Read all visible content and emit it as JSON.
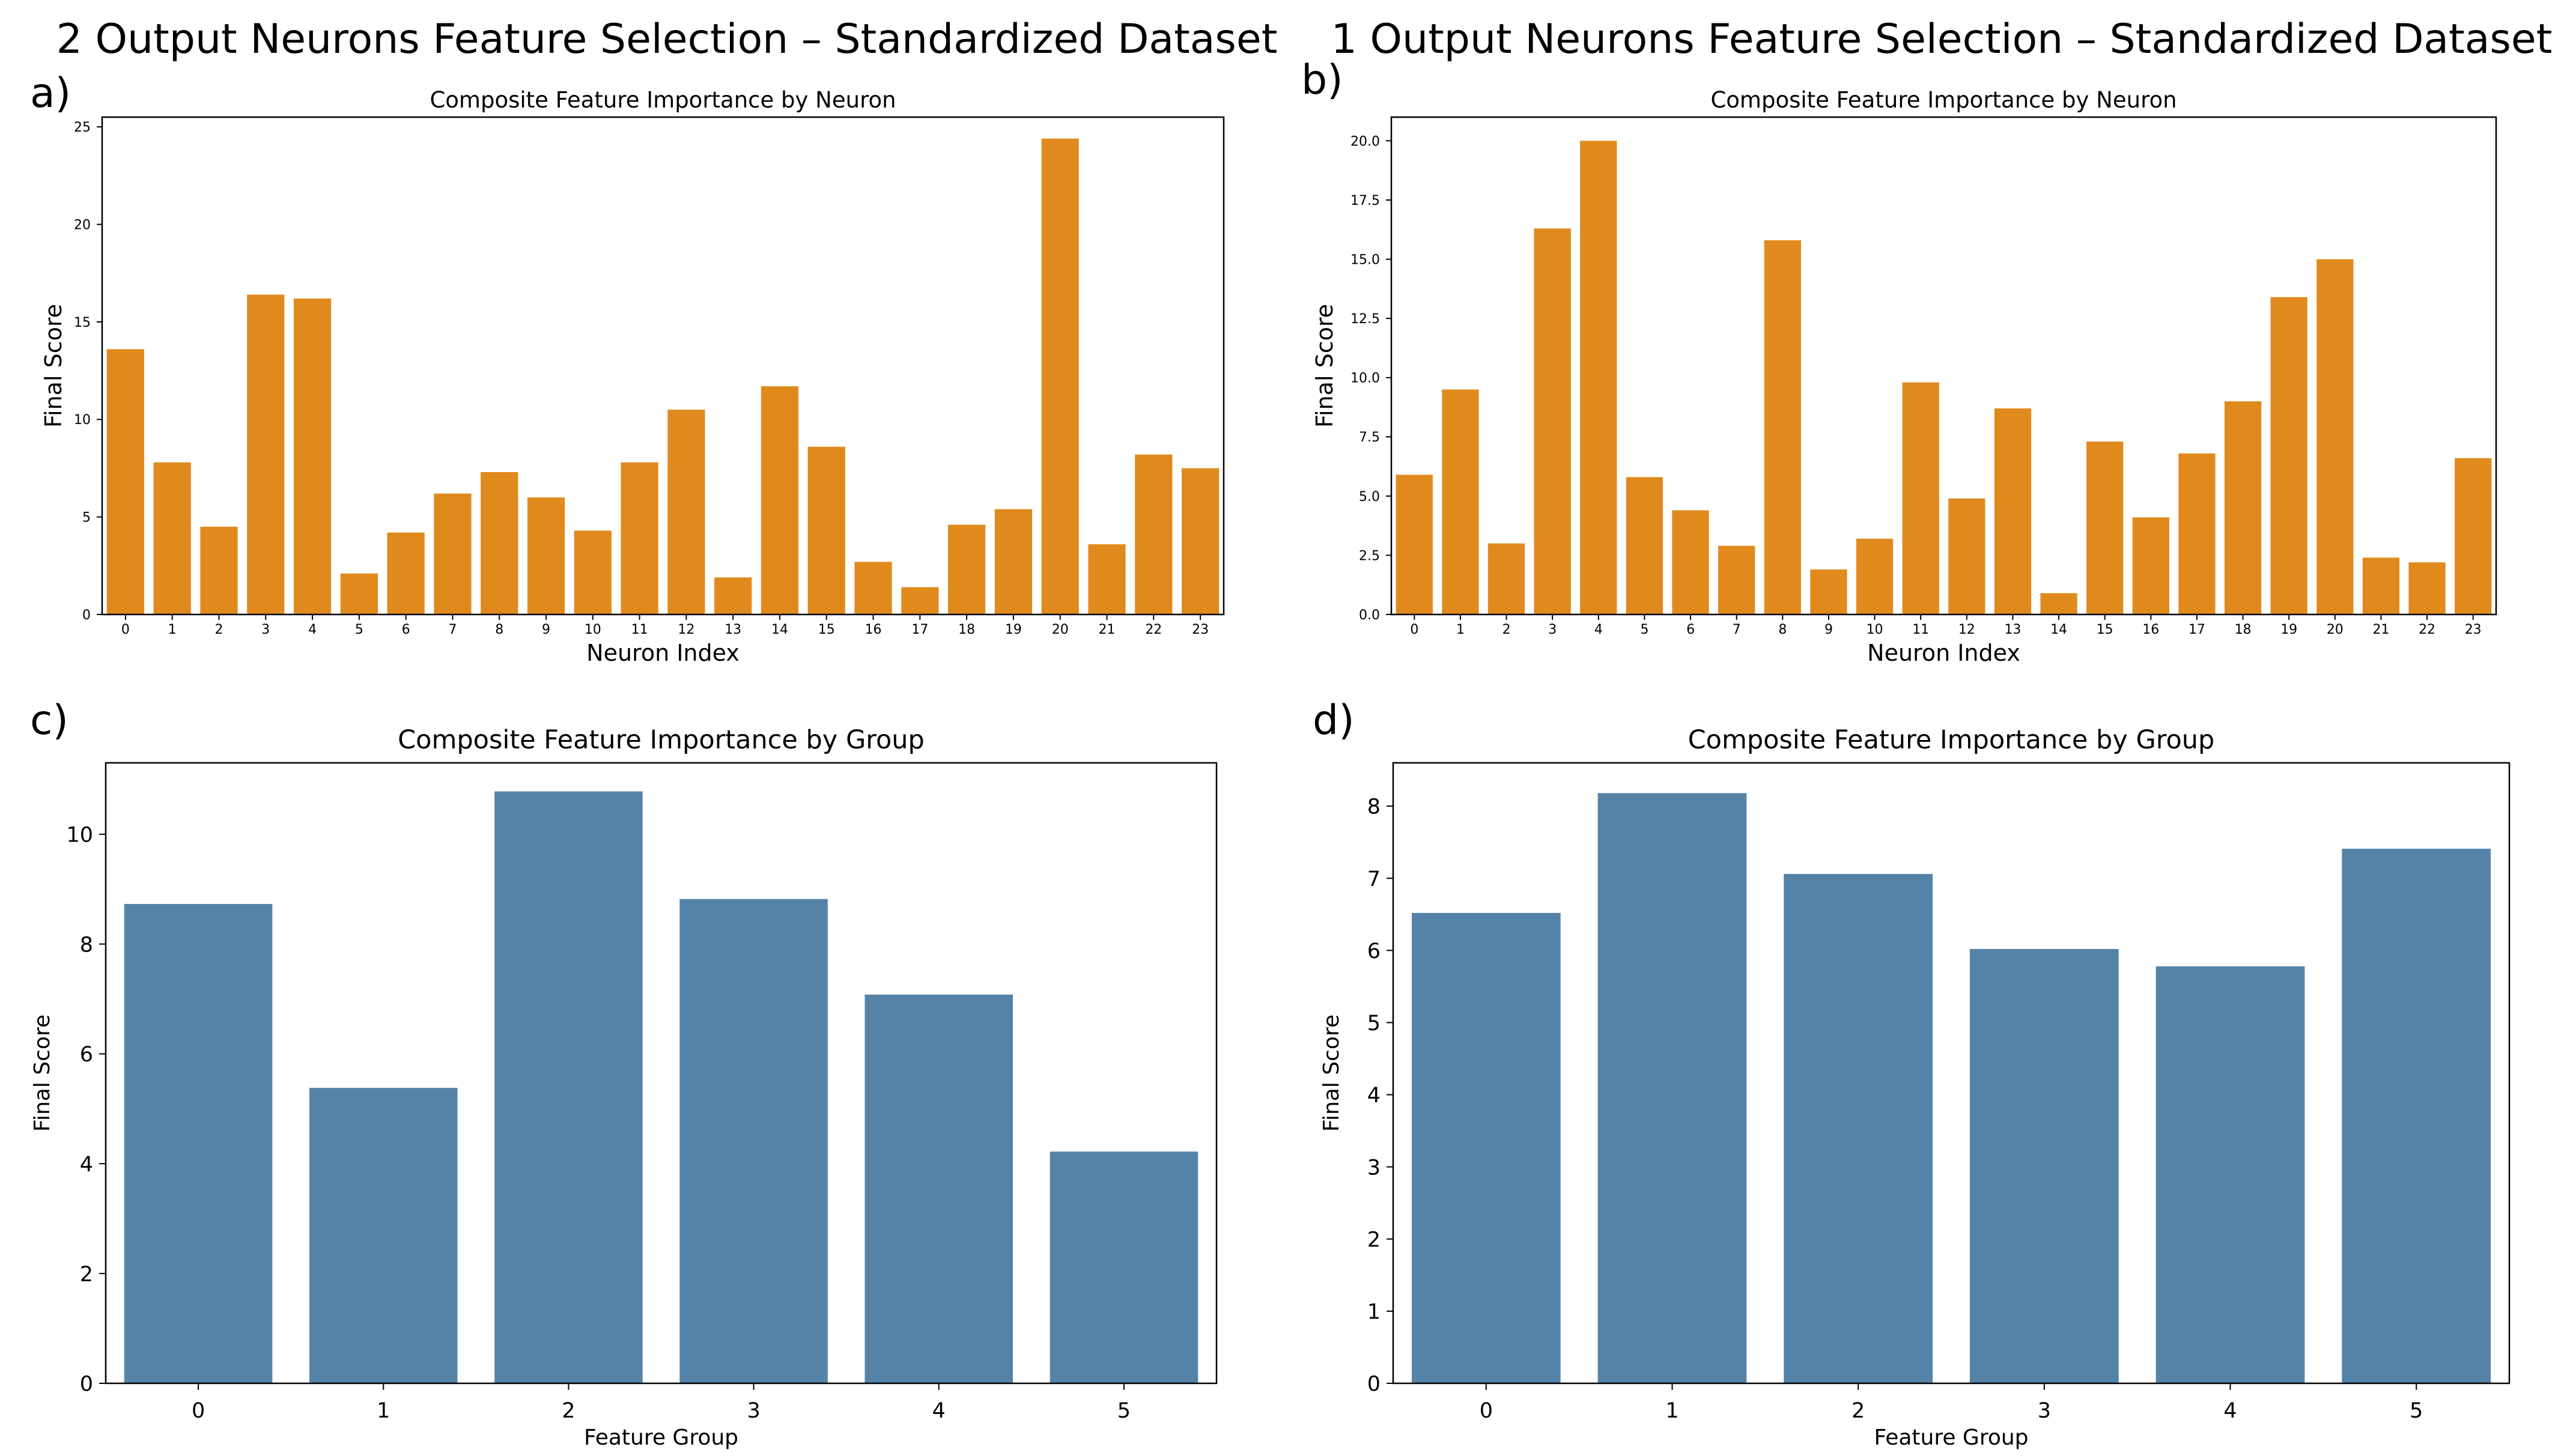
{
  "figure": {
    "titles": [
      "2 Output Neurons Feature Selection – Standardized Dataset",
      "1 Output Neurons Feature Selection – Standardized Dataset"
    ],
    "panel_letters": [
      "a)",
      "b)",
      "c)",
      "d)"
    ]
  },
  "colors": {
    "neuron_bar": "#e08a1e",
    "group_bar": "#5583a8"
  },
  "chart_data": [
    {
      "type": "bar",
      "title": "Composite Feature Importance by Neuron",
      "xlabel": "Neuron Index",
      "ylabel": "Final Score",
      "categories": [
        "0",
        "1",
        "2",
        "3",
        "4",
        "5",
        "6",
        "7",
        "8",
        "9",
        "10",
        "11",
        "12",
        "13",
        "14",
        "15",
        "16",
        "17",
        "18",
        "19",
        "20",
        "21",
        "22",
        "23"
      ],
      "values": [
        13.6,
        7.8,
        4.5,
        16.4,
        16.2,
        2.1,
        4.2,
        6.2,
        7.3,
        6.0,
        4.3,
        7.8,
        10.5,
        1.9,
        11.7,
        8.6,
        2.7,
        1.4,
        4.6,
        5.4,
        24.4,
        3.6,
        8.2,
        7.5
      ],
      "ylim": [
        0,
        25.5
      ],
      "yticks": [
        "0",
        "5",
        "10",
        "15",
        "20",
        "25"
      ]
    },
    {
      "type": "bar",
      "title": "Composite Feature Importance by Neuron",
      "xlabel": "Neuron Index",
      "ylabel": "Final Score",
      "categories": [
        "0",
        "1",
        "2",
        "3",
        "4",
        "5",
        "6",
        "7",
        "8",
        "9",
        "10",
        "11",
        "12",
        "13",
        "14",
        "15",
        "16",
        "17",
        "18",
        "19",
        "20",
        "21",
        "22",
        "23"
      ],
      "values": [
        5.9,
        9.5,
        3.0,
        16.3,
        20.0,
        5.8,
        4.4,
        2.9,
        15.8,
        1.9,
        3.2,
        9.8,
        4.9,
        8.7,
        0.9,
        7.3,
        4.1,
        6.8,
        9.0,
        13.4,
        15.0,
        2.4,
        2.2,
        6.6
      ],
      "ylim": [
        0,
        21
      ],
      "yticks": [
        "0.0",
        "2.5",
        "5.0",
        "7.5",
        "10.0",
        "12.5",
        "15.0",
        "17.5",
        "20.0"
      ]
    },
    {
      "type": "bar",
      "title": "Composite Feature Importance by Group",
      "xlabel": "Feature Group",
      "ylabel": "Final Score",
      "categories": [
        "0",
        "1",
        "2",
        "3",
        "4",
        "5"
      ],
      "values": [
        8.73,
        5.38,
        10.78,
        8.82,
        7.08,
        4.22
      ],
      "ylim": [
        0,
        11.3
      ],
      "yticks": [
        "0",
        "2",
        "4",
        "6",
        "8",
        "10"
      ]
    },
    {
      "type": "bar",
      "title": "Composite Feature Importance by Group",
      "xlabel": "Feature Group",
      "ylabel": "Final Score",
      "categories": [
        "0",
        "1",
        "2",
        "3",
        "4",
        "5"
      ],
      "values": [
        6.52,
        8.18,
        7.06,
        6.02,
        5.78,
        7.41
      ],
      "ylim": [
        0,
        8.6
      ],
      "yticks": [
        "0",
        "1",
        "2",
        "3",
        "4",
        "5",
        "6",
        "7",
        "8"
      ]
    }
  ]
}
